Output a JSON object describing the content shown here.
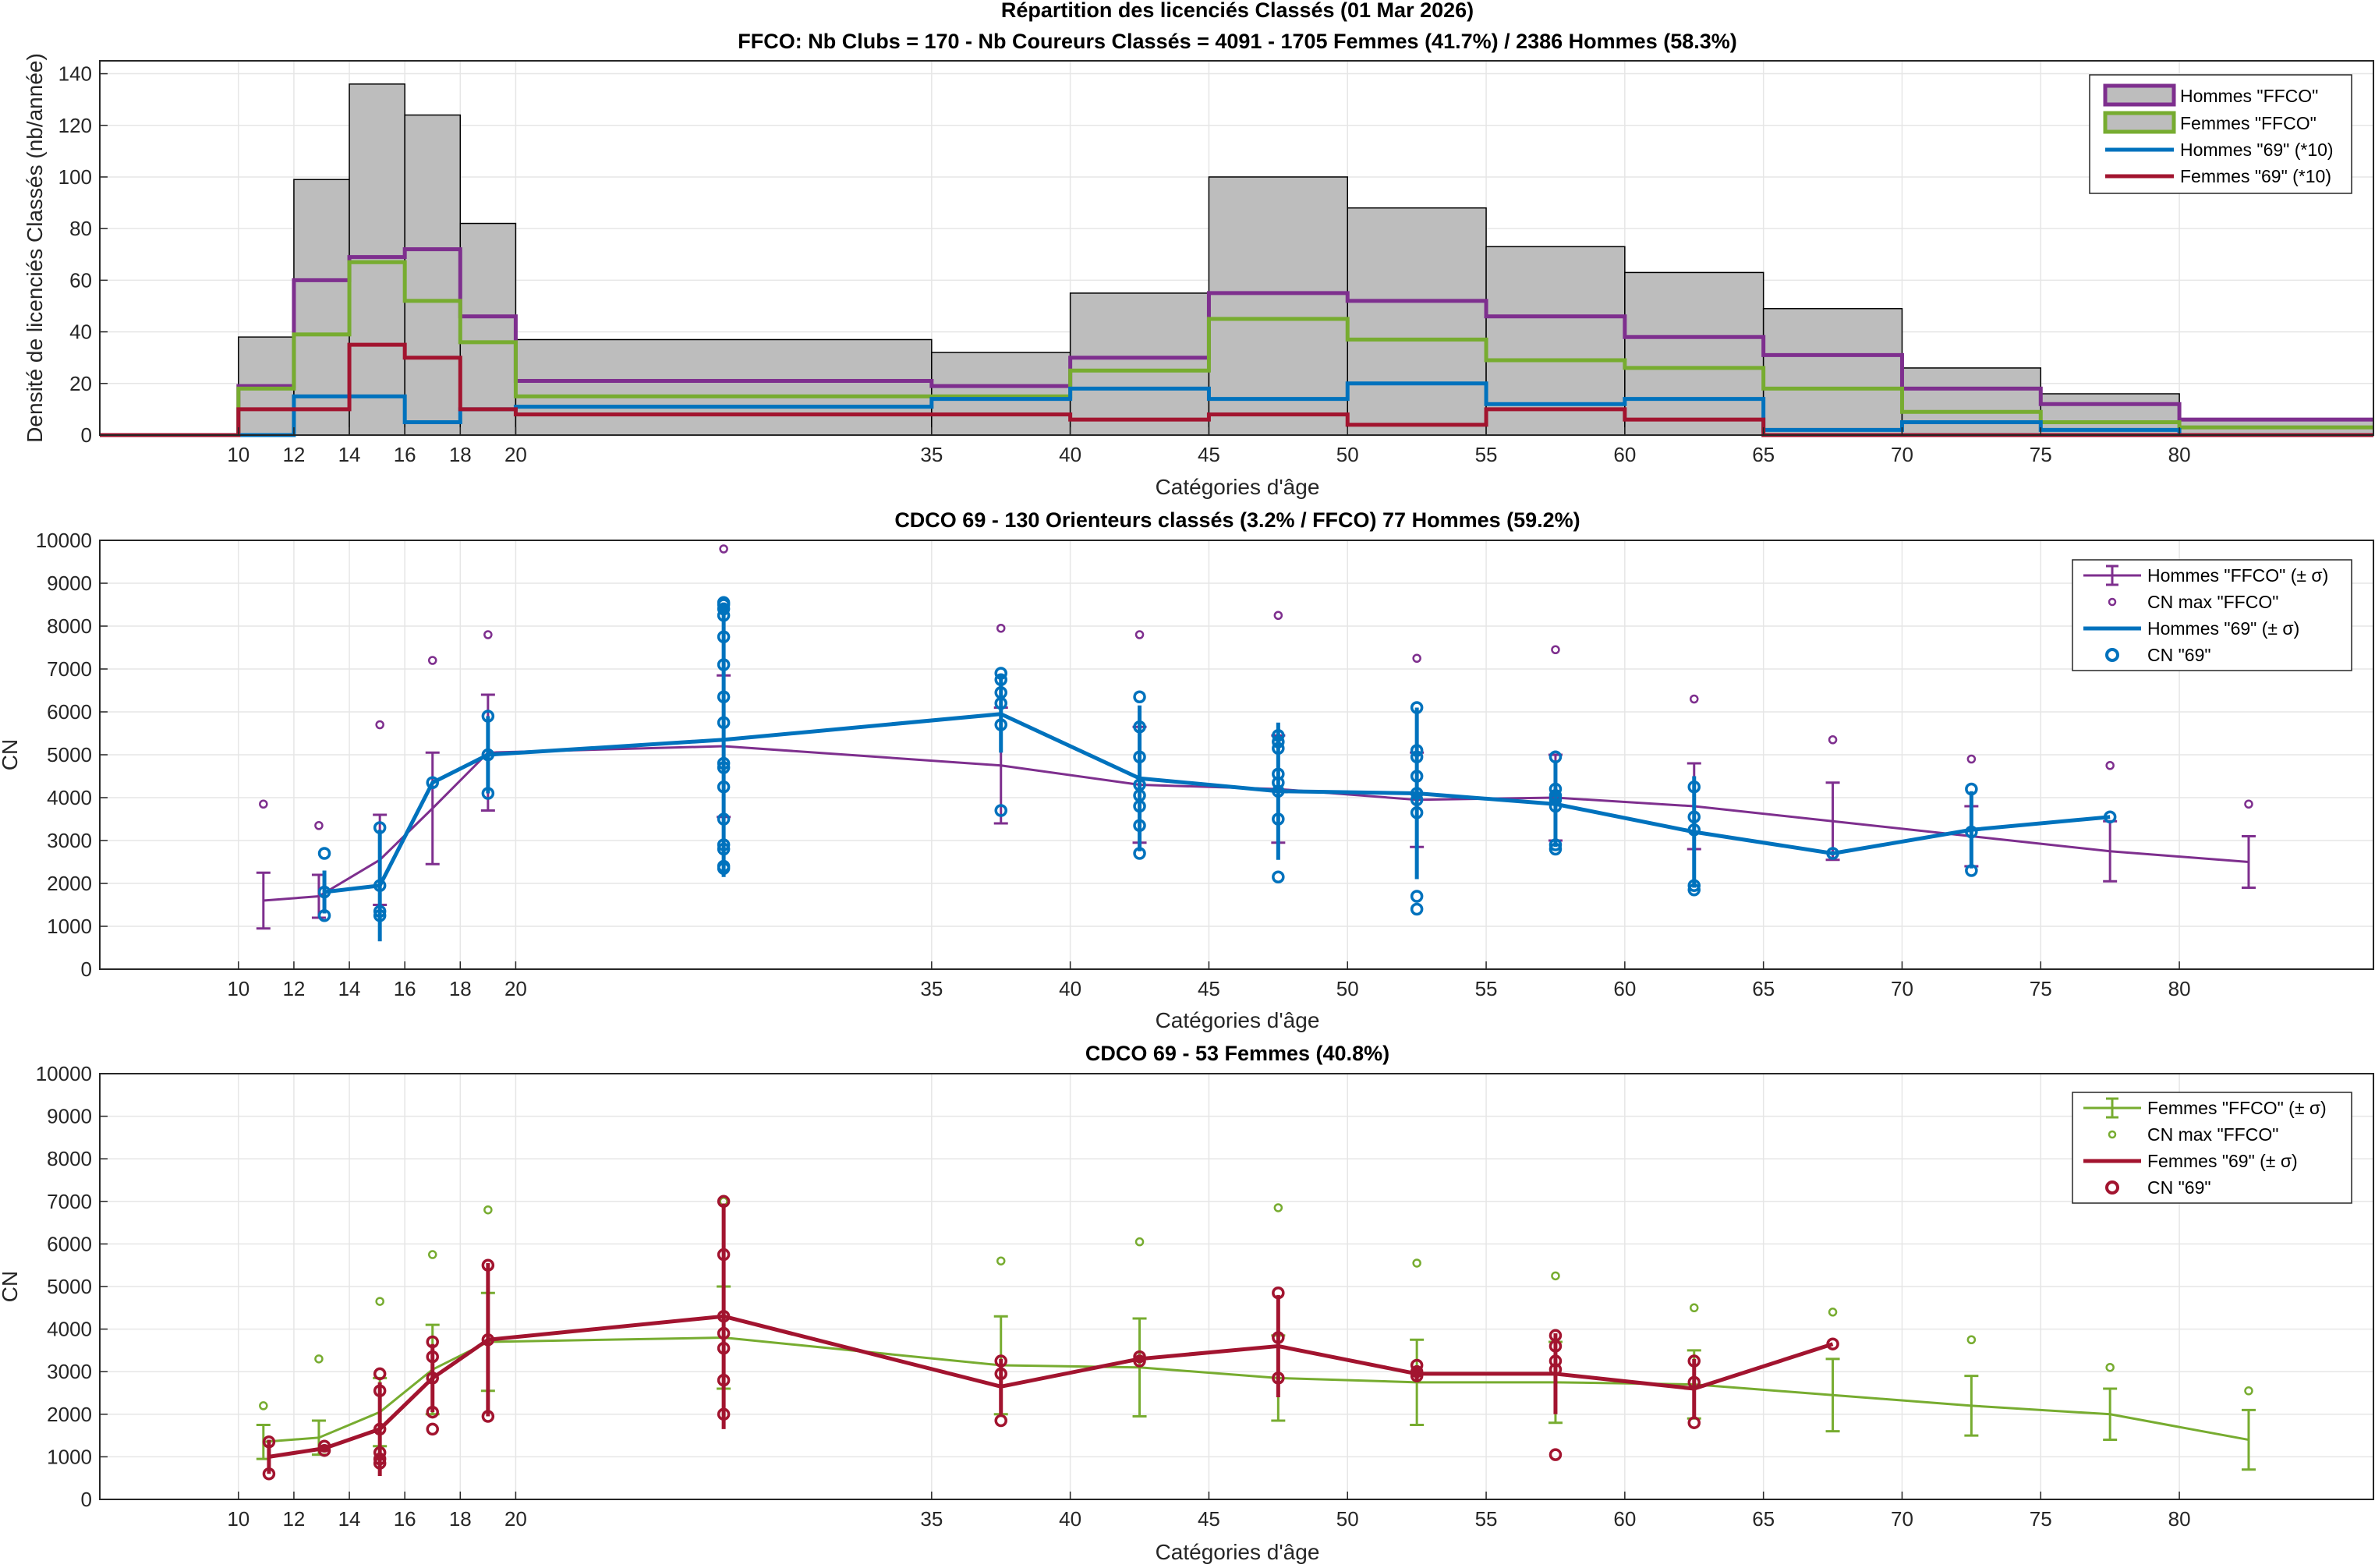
{
  "chart_data": [
    {
      "type": "bar",
      "title": "Répartition des licenciés Classés (01 Mar 2026)",
      "subtitle": "FFCO: Nb Clubs = 170   -   Nb Coureurs Classés = 4091   -   1705 Femmes (41.7%) / 2386 Hommes (58.3%)",
      "xlabel": "Catégories d'âge",
      "ylabel": "Densité de licenciés Classés (nb/année)",
      "xlim": [
        5,
        87
      ],
      "ylim": [
        0,
        145
      ],
      "xticks": [
        10,
        12,
        14,
        16,
        18,
        20,
        35,
        40,
        45,
        50,
        55,
        60,
        65,
        70,
        75,
        80
      ],
      "yticks": [
        0,
        20,
        40,
        60,
        80,
        100,
        120,
        140
      ],
      "grid": true,
      "legend_position": "top-right",
      "bin_edges": [
        5,
        10,
        12,
        14,
        16,
        18,
        20,
        35,
        40,
        45,
        50,
        55,
        60,
        65,
        70,
        75,
        80,
        87
      ],
      "total_density": [
        0,
        38,
        99,
        136,
        124,
        82,
        37,
        32,
        55,
        100,
        88,
        73,
        63,
        49,
        26,
        16,
        6
      ],
      "series": [
        {
          "name": "Hommes \"FFCO\"",
          "color": "#7E2F8E",
          "values": [
            0,
            19,
            60,
            69,
            72,
            46,
            21,
            19,
            30,
            55,
            52,
            46,
            38,
            31,
            18,
            12,
            6
          ]
        },
        {
          "name": "Femmes \"FFCO\"",
          "color": "#77AC30",
          "values": [
            0,
            18,
            39,
            67,
            52,
            36,
            15,
            15,
            25,
            45,
            37,
            29,
            26,
            18,
            9,
            5,
            3
          ]
        },
        {
          "name": "Hommes \"69\" (*10)",
          "color": "#0072BD",
          "values": [
            0,
            0,
            15,
            15,
            5,
            10,
            11,
            14,
            18,
            14,
            20,
            12,
            14,
            2,
            5,
            2,
            0
          ]
        },
        {
          "name": "Femmes \"69\" (*10)",
          "color": "#A2142F",
          "values": [
            0,
            10,
            10,
            35,
            30,
            10,
            8,
            8,
            6,
            8,
            4,
            10,
            6,
            0,
            0,
            0,
            0
          ]
        }
      ]
    },
    {
      "type": "line",
      "title": "CDCO 69  -  130 Orienteurs classés (3.2% / FFCO)  77 Hommes (59.2%)",
      "xlabel": "Catégories d'âge",
      "ylabel": "CN",
      "xlim": [
        5,
        87
      ],
      "ylim": [
        0,
        10000
      ],
      "xticks": [
        10,
        12,
        14,
        16,
        18,
        20,
        35,
        40,
        45,
        50,
        55,
        60,
        65,
        70,
        75,
        80
      ],
      "yticks": [
        0,
        1000,
        2000,
        3000,
        4000,
        5000,
        6000,
        7000,
        8000,
        9000,
        10000
      ],
      "grid": true,
      "legend_position": "top-right",
      "legend": [
        "Hommes \"FFCO\" (± σ)",
        "CN max \"FFCO\"",
        "Hommes \"69\" (± σ)",
        "CN \"69\""
      ],
      "colors": {
        "ffco": "#7E2F8E",
        "local": "#0072BD"
      },
      "ffco_mean": {
        "x": [
          10.9,
          12.9,
          15.1,
          17,
          19,
          27.5,
          37.5,
          42.5,
          47.5,
          52.5,
          57.5,
          62.5,
          67.5,
          72.5,
          77.5,
          82.5
        ],
        "y": [
          1600,
          1700,
          2550,
          3750,
          5050,
          5200,
          4750,
          4300,
          4200,
          3950,
          4000,
          3800,
          3450,
          3100,
          2750,
          2500
        ],
        "sd": [
          650,
          500,
          1050,
          1300,
          1350,
          1650,
          1350,
          1350,
          1250,
          1100,
          1000,
          1000,
          900,
          700,
          700,
          600
        ]
      },
      "cn_max_ffco": {
        "x": [
          10.9,
          12.9,
          15.1,
          17,
          19,
          27.5,
          37.5,
          42.5,
          47.5,
          52.5,
          57.5,
          62.5,
          67.5,
          72.5,
          77.5,
          82.5
        ],
        "y": [
          3850,
          3350,
          5700,
          7200,
          7800,
          9800,
          7950,
          7800,
          8250,
          7250,
          7450,
          6300,
          5350,
          4900,
          4750,
          3850
        ]
      },
      "local_mean": {
        "x": [
          13.1,
          15.1,
          17,
          19,
          27.5,
          37.5,
          42.5,
          47.5,
          52.5,
          57.5,
          62.5,
          67.5,
          72.5,
          77.5
        ],
        "y": [
          1800,
          1950,
          4350,
          5000,
          5350,
          5950,
          4450,
          4150,
          4100,
          3850,
          3200,
          2700,
          3250,
          3550
        ],
        "sd": [
          500,
          1300,
          0,
          900,
          3200,
          900,
          1700,
          1600,
          2000,
          1000,
          1300,
          0,
          900,
          0
        ]
      },
      "local_points": {
        "x": [
          13.1,
          13.1,
          13.1,
          15.1,
          15.1,
          15.1,
          15.1,
          17,
          19,
          19,
          19,
          27.5,
          27.5,
          27.5,
          27.5,
          27.5,
          27.5,
          27.5,
          27.5,
          27.5,
          27.5,
          27.5,
          27.5,
          27.5,
          27.5,
          27.5,
          27.5,
          37.5,
          37.5,
          37.5,
          37.5,
          37.5,
          37.5,
          42.5,
          42.5,
          42.5,
          42.5,
          42.5,
          42.5,
          42.5,
          42.5,
          47.5,
          47.5,
          47.5,
          47.5,
          47.5,
          47.5,
          47.5,
          47.5,
          52.5,
          52.5,
          52.5,
          52.5,
          52.5,
          52.5,
          52.5,
          52.5,
          52.5,
          57.5,
          57.5,
          57.5,
          57.5,
          57.5,
          57.5,
          57.5,
          62.5,
          62.5,
          62.5,
          62.5,
          62.5,
          67.5,
          72.5,
          72.5,
          72.5,
          77.5
        ],
        "y": [
          2700,
          1800,
          1250,
          3300,
          1950,
          1350,
          1250,
          4350,
          5900,
          5000,
          4100,
          8550,
          8400,
          8250,
          7750,
          7100,
          6350,
          5750,
          4700,
          4250,
          3500,
          2900,
          2800,
          2400,
          2350,
          8500,
          4800,
          6900,
          6750,
          6450,
          6200,
          5700,
          3700,
          6350,
          5650,
          4950,
          4300,
          4050,
          3800,
          3350,
          2700,
          5450,
          5150,
          4550,
          4350,
          4150,
          3500,
          2150,
          5300,
          6100,
          5100,
          4950,
          4500,
          4100,
          3950,
          3650,
          1700,
          1400,
          4950,
          4200,
          4050,
          3950,
          3800,
          2900,
          2800,
          4250,
          3550,
          3250,
          1950,
          1850,
          2700,
          4200,
          3200,
          2300,
          3550
        ]
      }
    },
    {
      "type": "line",
      "title": "CDCO 69  -  53 Femmes (40.8%)",
      "xlabel": "Catégories d'âge",
      "ylabel": "CN",
      "xlim": [
        5,
        87
      ],
      "ylim": [
        0,
        10000
      ],
      "xticks": [
        10,
        12,
        14,
        16,
        18,
        20,
        35,
        40,
        45,
        50,
        55,
        60,
        65,
        70,
        75,
        80
      ],
      "yticks": [
        0,
        1000,
        2000,
        3000,
        4000,
        5000,
        6000,
        7000,
        8000,
        9000,
        10000
      ],
      "grid": true,
      "legend_position": "top-right",
      "legend": [
        "Femmes \"FFCO\" (± σ)",
        "CN max \"FFCO\"",
        "Femmes \"69\" (± σ)",
        "CN \"69\""
      ],
      "colors": {
        "ffco": "#77AC30",
        "local": "#A2142F"
      },
      "ffco_mean": {
        "x": [
          10.9,
          12.9,
          15.1,
          17,
          19,
          27.5,
          37.5,
          42.5,
          47.5,
          52.5,
          57.5,
          62.5,
          67.5,
          72.5,
          77.5,
          82.5
        ],
        "y": [
          1350,
          1450,
          2050,
          3050,
          3700,
          3800,
          3150,
          3100,
          2850,
          2750,
          2750,
          2700,
          2450,
          2200,
          2000,
          1400
        ],
        "sd": [
          400,
          400,
          800,
          1050,
          1150,
          1200,
          1150,
          1150,
          1000,
          1000,
          950,
          800,
          850,
          700,
          600,
          700
        ]
      },
      "cn_max_ffco": {
        "x": [
          10.9,
          12.9,
          15.1,
          17,
          19,
          27.5,
          37.5,
          42.5,
          47.5,
          52.5,
          57.5,
          62.5,
          67.5,
          72.5,
          77.5,
          82.5
        ],
        "y": [
          2200,
          3300,
          4650,
          5750,
          6800,
          7000,
          5600,
          6050,
          6850,
          5550,
          5250,
          4500,
          4400,
          3750,
          3100,
          2550
        ]
      },
      "local_mean": {
        "x": [
          11.1,
          13.1,
          15.1,
          17,
          19,
          27.5,
          37.5,
          42.5,
          47.5,
          52.5,
          57.5,
          62.5,
          67.5
        ],
        "y": [
          1000,
          1200,
          1650,
          2850,
          3750,
          4300,
          2650,
          3300,
          3600,
          2950,
          2950,
          2600,
          3650
        ],
        "sd": [
          400,
          50,
          1100,
          800,
          1800,
          2650,
          650,
          100,
          1200,
          200,
          950,
          700,
          0
        ]
      },
      "local_points": {
        "x": [
          11.1,
          11.1,
          13.1,
          13.1,
          15.1,
          15.1,
          15.1,
          15.1,
          15.1,
          15.1,
          17,
          17,
          17,
          17,
          17,
          19,
          19,
          19,
          27.5,
          27.5,
          27.5,
          27.5,
          27.5,
          27.5,
          27.5,
          37.5,
          37.5,
          37.5,
          42.5,
          42.5,
          47.5,
          47.5,
          47.5,
          52.5,
          52.5,
          52.5,
          57.5,
          57.5,
          57.5,
          57.5,
          57.5,
          62.5,
          62.5,
          62.5,
          67.5
        ],
        "y": [
          1350,
          600,
          1250,
          1150,
          2950,
          2550,
          1650,
          1100,
          950,
          850,
          3700,
          3350,
          2850,
          2050,
          1650,
          5500,
          3750,
          1950,
          7000,
          5750,
          4300,
          3900,
          3550,
          2800,
          2000,
          3250,
          2950,
          1850,
          3350,
          3250,
          4850,
          3800,
          2850,
          3150,
          3000,
          2900,
          3850,
          3600,
          3250,
          3050,
          1050,
          3250,
          2750,
          1800,
          3650
        ]
      }
    }
  ]
}
